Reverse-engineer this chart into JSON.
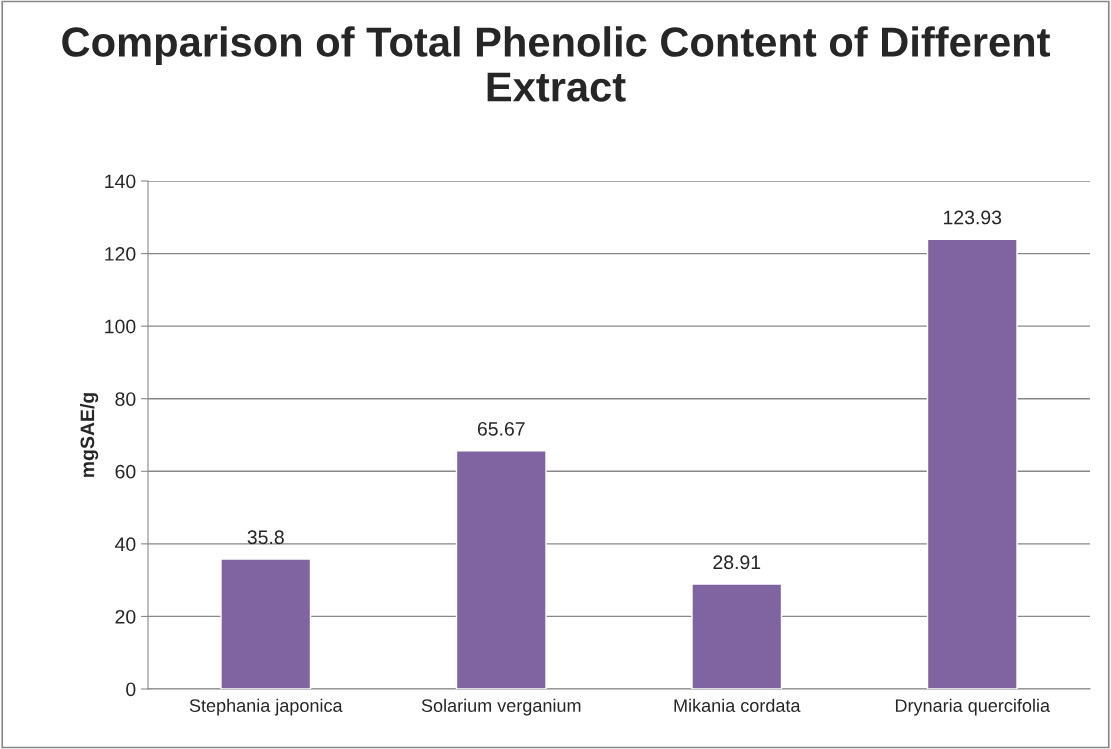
{
  "chart_data": {
    "type": "bar",
    "title": "Comparison of Total Phenolic Content of Different Extract",
    "ylabel": "mgSAE/g",
    "categories": [
      "Stephania japonica",
      "Solarium verganium",
      "Mikania cordata",
      "Drynaria quercifolia"
    ],
    "values": [
      35.8,
      65.67,
      28.91,
      123.93
    ],
    "color": "#8064a2",
    "ylim": [
      0,
      140
    ],
    "yticks": [
      0,
      20,
      40,
      60,
      80,
      100,
      120,
      140
    ],
    "grid": "y",
    "data_labels": true
  }
}
